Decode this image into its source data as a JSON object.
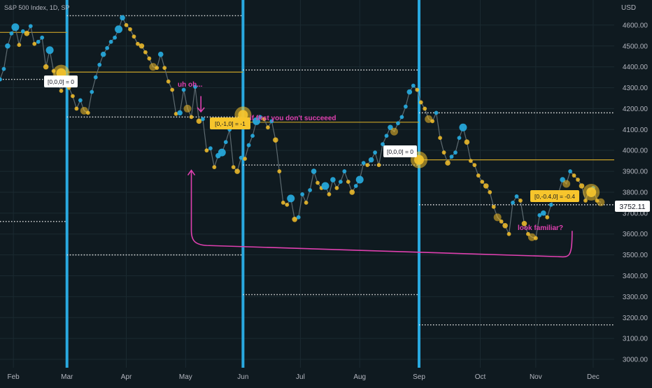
{
  "header": {
    "symbol_title": "S&P 500 Index, 1D, SP"
  },
  "price_axis": {
    "currency": "USD",
    "current_price_label": "3752.11",
    "tick_labels": [
      "4600.00",
      "4500.00",
      "4400.00",
      "4300.00",
      "4200.00",
      "4100.00",
      "4000.00",
      "3900.00",
      "3800.00",
      "3700.00",
      "3600.00",
      "3500.00",
      "3400.00",
      "3300.00",
      "3200.00",
      "3100.00",
      "3000.00"
    ]
  },
  "time_axis": {
    "tick_labels": [
      "Feb",
      "Mar",
      "Apr",
      "May",
      "Jun",
      "Jul",
      "Aug",
      "Sep",
      "Oct",
      "Nov",
      "Dec"
    ]
  },
  "annotations": {
    "label_a": "[0,0,0] = 0",
    "label_b": "[0,-1,0] = -1",
    "label_c": "[0,0,0] = 0",
    "label_d": "[0,-0.4,0] = -0.4",
    "note_uh_oh": "uh oh...",
    "note_first": "if first you don't succeeed",
    "note_familiar": "look familiar?"
  },
  "colors": {
    "background": "#0f1a20",
    "grid": "#1b2a31",
    "axis_text": "#b2b5be",
    "price_line": "#5d6a70",
    "up_dot": "#26a7d9",
    "down_dot": "#f5c02a",
    "vertical_marker": "#29a9e0",
    "level_line": "#c9a227",
    "dotted_level": "#e6e6e6",
    "magenta": "#e040b0",
    "label_yellow_bg": "#f7c52c",
    "label_white_bg": "#ffffff"
  },
  "chart_data": {
    "type": "line",
    "title": "S&P 500 Index, 1D, SP",
    "ylabel": "USD",
    "ylim": [
      2960,
      4720
    ],
    "xlim": [
      "2022-01-25",
      "2022-12-12"
    ],
    "x_ticks": [
      "2022-02-01",
      "2022-03-01",
      "2022-04-01",
      "2022-05-02",
      "2022-06-01",
      "2022-07-01",
      "2022-08-01",
      "2022-09-01",
      "2022-10-03",
      "2022-11-01",
      "2022-12-01"
    ],
    "y_ticks": [
      3000,
      3100,
      3200,
      3300,
      3400,
      3500,
      3600,
      3700,
      3800,
      3900,
      4000,
      4100,
      4200,
      4300,
      4400,
      4500,
      4600
    ],
    "last_price": 3752.11,
    "series": [
      {
        "values": [
          {
            "x": "2022-01-25",
            "y": 4340
          },
          {
            "x": "2022-01-27",
            "y": 4390
          },
          {
            "x": "2022-01-29",
            "y": 4500
          },
          {
            "x": "2022-01-31",
            "y": 4560
          },
          {
            "x": "2022-02-02",
            "y": 4590
          },
          {
            "x": "2022-02-04",
            "y": 4505
          },
          {
            "x": "2022-02-06",
            "y": 4570
          },
          {
            "x": "2022-02-08",
            "y": 4560
          },
          {
            "x": "2022-02-10",
            "y": 4595
          },
          {
            "x": "2022-02-12",
            "y": 4510
          },
          {
            "x": "2022-02-14",
            "y": 4520
          },
          {
            "x": "2022-02-16",
            "y": 4540
          },
          {
            "x": "2022-02-18",
            "y": 4400
          },
          {
            "x": "2022-02-20",
            "y": 4480
          },
          {
            "x": "2022-02-22",
            "y": 4380
          },
          {
            "x": "2022-02-24",
            "y": 4330
          },
          {
            "x": "2022-02-26",
            "y": 4285
          },
          {
            "x": "2022-02-28",
            "y": 4340
          },
          {
            "x": "2022-03-02",
            "y": 4300
          },
          {
            "x": "2022-03-04",
            "y": 4260
          },
          {
            "x": "2022-03-06",
            "y": 4200
          },
          {
            "x": "2022-03-08",
            "y": 4240
          },
          {
            "x": "2022-03-10",
            "y": 4190
          },
          {
            "x": "2022-03-12",
            "y": 4180
          },
          {
            "x": "2022-03-14",
            "y": 4280
          },
          {
            "x": "2022-03-16",
            "y": 4350
          },
          {
            "x": "2022-03-18",
            "y": 4410
          },
          {
            "x": "2022-03-20",
            "y": 4460
          },
          {
            "x": "2022-03-22",
            "y": 4490
          },
          {
            "x": "2022-03-24",
            "y": 4520
          },
          {
            "x": "2022-03-26",
            "y": 4540
          },
          {
            "x": "2022-03-28",
            "y": 4580
          },
          {
            "x": "2022-03-30",
            "y": 4635
          },
          {
            "x": "2022-04-01",
            "y": 4600
          },
          {
            "x": "2022-04-03",
            "y": 4580
          },
          {
            "x": "2022-04-05",
            "y": 4545
          },
          {
            "x": "2022-04-07",
            "y": 4510
          },
          {
            "x": "2022-04-09",
            "y": 4500
          },
          {
            "x": "2022-04-11",
            "y": 4470
          },
          {
            "x": "2022-04-13",
            "y": 4440
          },
          {
            "x": "2022-04-15",
            "y": 4400
          },
          {
            "x": "2022-04-17",
            "y": 4395
          },
          {
            "x": "2022-04-19",
            "y": 4460
          },
          {
            "x": "2022-04-21",
            "y": 4395
          },
          {
            "x": "2022-04-23",
            "y": 4330
          },
          {
            "x": "2022-04-25",
            "y": 4290
          },
          {
            "x": "2022-04-27",
            "y": 4175
          },
          {
            "x": "2022-04-29",
            "y": 4180
          },
          {
            "x": "2022-05-01",
            "y": 4290
          },
          {
            "x": "2022-05-03",
            "y": 4200
          },
          {
            "x": "2022-05-05",
            "y": 4160
          },
          {
            "x": "2022-05-07",
            "y": 4305
          },
          {
            "x": "2022-05-09",
            "y": 4140
          },
          {
            "x": "2022-05-11",
            "y": 4150
          },
          {
            "x": "2022-05-13",
            "y": 4000
          },
          {
            "x": "2022-05-15",
            "y": 4010
          },
          {
            "x": "2022-05-17",
            "y": 3920
          },
          {
            "x": "2022-05-19",
            "y": 3975
          },
          {
            "x": "2022-05-21",
            "y": 3990
          },
          {
            "x": "2022-05-23",
            "y": 4040
          },
          {
            "x": "2022-05-25",
            "y": 4100
          },
          {
            "x": "2022-05-27",
            "y": 3920
          },
          {
            "x": "2022-05-29",
            "y": 3900
          },
          {
            "x": "2022-05-31",
            "y": 3965
          },
          {
            "x": "2022-06-02",
            "y": 3960
          },
          {
            "x": "2022-06-04",
            "y": 4025
          },
          {
            "x": "2022-06-06",
            "y": 4070
          },
          {
            "x": "2022-06-08",
            "y": 4140
          },
          {
            "x": "2022-06-10",
            "y": 4160
          },
          {
            "x": "2022-06-12",
            "y": 4150
          },
          {
            "x": "2022-06-14",
            "y": 4110
          },
          {
            "x": "2022-06-16",
            "y": 4140
          },
          {
            "x": "2022-06-18",
            "y": 4050
          },
          {
            "x": "2022-06-20",
            "y": 3900
          },
          {
            "x": "2022-06-22",
            "y": 3750
          },
          {
            "x": "2022-06-24",
            "y": 3740
          },
          {
            "x": "2022-06-26",
            "y": 3770
          },
          {
            "x": "2022-06-28",
            "y": 3670
          },
          {
            "x": "2022-06-30",
            "y": 3680
          },
          {
            "x": "2022-07-02",
            "y": 3790
          },
          {
            "x": "2022-07-04",
            "y": 3750
          },
          {
            "x": "2022-07-06",
            "y": 3810
          },
          {
            "x": "2022-07-08",
            "y": 3900
          },
          {
            "x": "2022-07-10",
            "y": 3845
          },
          {
            "x": "2022-07-12",
            "y": 3820
          },
          {
            "x": "2022-07-14",
            "y": 3830
          },
          {
            "x": "2022-07-16",
            "y": 3790
          },
          {
            "x": "2022-07-18",
            "y": 3860
          },
          {
            "x": "2022-07-20",
            "y": 3820
          },
          {
            "x": "2022-07-22",
            "y": 3850
          },
          {
            "x": "2022-07-24",
            "y": 3900
          },
          {
            "x": "2022-07-26",
            "y": 3850
          },
          {
            "x": "2022-07-28",
            "y": 3800
          },
          {
            "x": "2022-07-30",
            "y": 3830
          },
          {
            "x": "2022-08-01",
            "y": 3860
          },
          {
            "x": "2022-08-03",
            "y": 3940
          },
          {
            "x": "2022-08-05",
            "y": 3930
          },
          {
            "x": "2022-08-07",
            "y": 3955
          },
          {
            "x": "2022-08-09",
            "y": 3990
          },
          {
            "x": "2022-08-11",
            "y": 3930
          },
          {
            "x": "2022-08-13",
            "y": 4030
          },
          {
            "x": "2022-08-15",
            "y": 4070
          },
          {
            "x": "2022-08-17",
            "y": 4110
          },
          {
            "x": "2022-08-19",
            "y": 4090
          },
          {
            "x": "2022-08-21",
            "y": 4130
          },
          {
            "x": "2022-08-23",
            "y": 4160
          },
          {
            "x": "2022-08-25",
            "y": 4210
          },
          {
            "x": "2022-08-27",
            "y": 4280
          },
          {
            "x": "2022-08-29",
            "y": 4310
          },
          {
            "x": "2022-08-31",
            "y": 4290
          },
          {
            "x": "2022-09-02",
            "y": 4230
          },
          {
            "x": "2022-09-04",
            "y": 4200
          },
          {
            "x": "2022-09-06",
            "y": 4150
          },
          {
            "x": "2022-09-08",
            "y": 4140
          },
          {
            "x": "2022-09-10",
            "y": 4180
          },
          {
            "x": "2022-09-12",
            "y": 4060
          },
          {
            "x": "2022-09-14",
            "y": 3990
          },
          {
            "x": "2022-09-16",
            "y": 3940
          },
          {
            "x": "2022-09-18",
            "y": 3970
          },
          {
            "x": "2022-09-20",
            "y": 3990
          },
          {
            "x": "2022-09-22",
            "y": 4060
          },
          {
            "x": "2022-09-24",
            "y": 4110
          },
          {
            "x": "2022-09-26",
            "y": 4040
          },
          {
            "x": "2022-09-28",
            "y": 3950
          },
          {
            "x": "2022-09-30",
            "y": 3930
          },
          {
            "x": "2022-10-02",
            "y": 3880
          },
          {
            "x": "2022-10-04",
            "y": 3850
          },
          {
            "x": "2022-10-06",
            "y": 3830
          },
          {
            "x": "2022-10-08",
            "y": 3800
          },
          {
            "x": "2022-10-10",
            "y": 3730
          },
          {
            "x": "2022-10-12",
            "y": 3680
          },
          {
            "x": "2022-10-14",
            "y": 3660
          },
          {
            "x": "2022-10-16",
            "y": 3640
          },
          {
            "x": "2022-10-18",
            "y": 3600
          },
          {
            "x": "2022-10-20",
            "y": 3750
          },
          {
            "x": "2022-10-22",
            "y": 3780
          },
          {
            "x": "2022-10-24",
            "y": 3760
          },
          {
            "x": "2022-10-26",
            "y": 3650
          },
          {
            "x": "2022-10-28",
            "y": 3600
          },
          {
            "x": "2022-10-30",
            "y": 3585
          },
          {
            "x": "2022-11-01",
            "y": 3580
          },
          {
            "x": "2022-11-03",
            "y": 3690
          },
          {
            "x": "2022-11-05",
            "y": 3700
          },
          {
            "x": "2022-11-07",
            "y": 3680
          },
          {
            "x": "2022-11-09",
            "y": 3740
          },
          {
            "x": "2022-11-11",
            "y": 3790
          },
          {
            "x": "2022-11-13",
            "y": 3800
          },
          {
            "x": "2022-11-15",
            "y": 3860
          },
          {
            "x": "2022-11-17",
            "y": 3840
          },
          {
            "x": "2022-11-19",
            "y": 3900
          },
          {
            "x": "2022-11-21",
            "y": 3880
          },
          {
            "x": "2022-11-23",
            "y": 3860
          },
          {
            "x": "2022-11-25",
            "y": 3830
          },
          {
            "x": "2022-11-27",
            "y": 3760
          },
          {
            "x": "2022-11-29",
            "y": 3810
          },
          {
            "x": "2022-12-01",
            "y": 3820
          },
          {
            "x": "2022-12-03",
            "y": 3760
          },
          {
            "x": "2022-12-05",
            "y": 3752
          }
        ]
      }
    ],
    "vertical_markers": [
      "2022-03-01",
      "2022-06-01",
      "2022-09-01"
    ],
    "level_lines": [
      {
        "y": 4565,
        "from": "2022-01-25",
        "to": "2022-03-01",
        "style": "solid"
      },
      {
        "y": 4375,
        "from": "2022-03-01",
        "to": "2022-06-01",
        "style": "solid"
      },
      {
        "y": 4135,
        "from": "2022-06-01",
        "to": "2022-09-01",
        "style": "solid"
      },
      {
        "y": 3955,
        "from": "2022-09-01",
        "to": "2022-12-12",
        "style": "solid"
      },
      {
        "y": 4645,
        "from": "2022-03-01",
        "to": "2022-06-01",
        "style": "dotted"
      },
      {
        "y": 4340,
        "from": "2022-01-25",
        "to": "2022-03-01",
        "style": "dotted"
      },
      {
        "y": 4160,
        "from": "2022-03-01",
        "to": "2022-06-01",
        "style": "dotted"
      },
      {
        "y": 3660,
        "from": "2022-01-25",
        "to": "2022-03-01",
        "style": "dotted"
      },
      {
        "y": 3500,
        "from": "2022-03-01",
        "to": "2022-06-01",
        "style": "dotted"
      },
      {
        "y": 4385,
        "from": "2022-06-01",
        "to": "2022-09-01",
        "style": "dotted"
      },
      {
        "y": 3930,
        "from": "2022-06-01",
        "to": "2022-09-01",
        "style": "dotted"
      },
      {
        "y": 3310,
        "from": "2022-06-01",
        "to": "2022-09-01",
        "style": "dotted"
      },
      {
        "y": 4180,
        "from": "2022-09-01",
        "to": "2022-12-12",
        "style": "dotted"
      },
      {
        "y": 3740,
        "from": "2022-09-01",
        "to": "2022-12-12",
        "style": "dotted"
      },
      {
        "y": 3165,
        "from": "2022-09-01",
        "to": "2022-12-12",
        "style": "dotted"
      }
    ],
    "annotation_points": [
      {
        "x": "2022-02-26",
        "y": 4370
      },
      {
        "x": "2022-06-01",
        "y": 4170
      },
      {
        "x": "2022-09-01",
        "y": 3955
      },
      {
        "x": "2022-11-30",
        "y": 3800
      }
    ],
    "arrows": [
      {
        "from": {
          "x": "2022-05-10",
          "y": 4260
        },
        "to": {
          "x": "2022-05-10",
          "y": 4185
        }
      },
      {
        "from": {
          "x": "2022-11-20",
          "y": 3615
        },
        "to": {
          "x": "2022-05-05",
          "y": 3905
        }
      }
    ],
    "grid": true,
    "legend": "none"
  }
}
